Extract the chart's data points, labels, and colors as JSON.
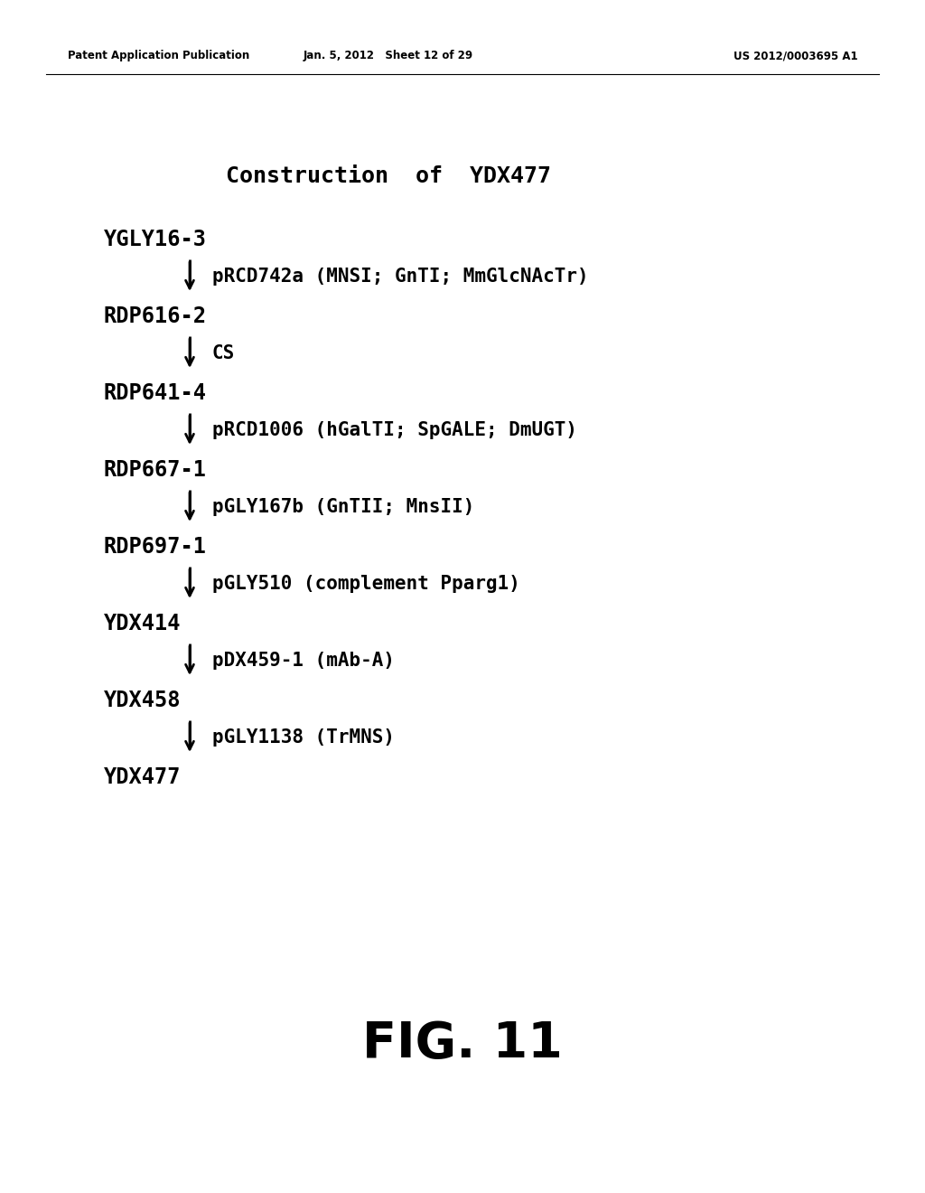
{
  "background_color": "#ffffff",
  "header_left": "Patent Application Publication",
  "header_mid": "Jan. 5, 2012   Sheet 12 of 29",
  "header_right": "US 2012/0003695 A1",
  "header_fontsize": 8.5,
  "title": "Construction  of  YDX477",
  "title_fontsize": 18,
  "fig_label": "FIG. 11",
  "fig_label_fontsize": 40,
  "text_color": "#000000",
  "arrow_color": "#000000",
  "strain_fontsize": 17,
  "plasmid_fontsize": 15,
  "steps": [
    {
      "strain": "YGLY16-3",
      "plasmid": "pRCD742a (MNSI; GnTI; MmGlcNAcTr)"
    },
    {
      "strain": "RDP616-2",
      "plasmid": "CS"
    },
    {
      "strain": "RDP641-4",
      "plasmid": "pRCD1006 (hGalTI; SpGALE; DmUGT)"
    },
    {
      "strain": "RDP667-1",
      "plasmid": "pGLY167b (GnTII; MnsII)"
    },
    {
      "strain": "RDP697-1",
      "plasmid": "pGLY510 (complement Pparg1)"
    },
    {
      "strain": "YDX414",
      "plasmid": "pDX459-1 (mAb-A)"
    },
    {
      "strain": "YDX458",
      "plasmid": "pGLY1138 (TrMNS)"
    }
  ],
  "final_strain": "YDX477"
}
